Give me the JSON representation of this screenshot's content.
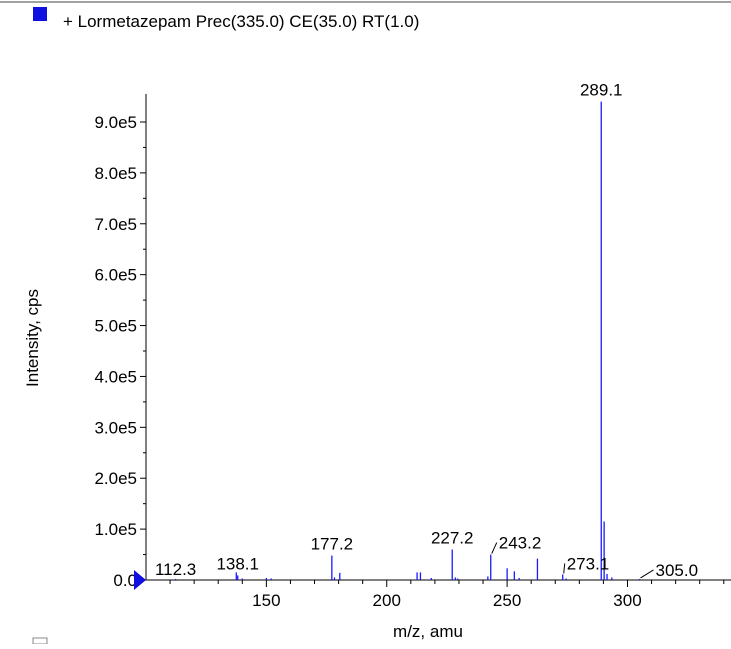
{
  "legend": {
    "label": "+ Lormetazepam Prec(335.0) CE(35.0) RT(1.0)",
    "color": "#1010e0"
  },
  "chart_data": {
    "type": "bar",
    "title": "+ Lormetazepam Prec(335.0) CE(35.0) RT(1.0)",
    "xlabel": "m/z, amu",
    "ylabel": "Intensity, cps",
    "xlim": [
      100,
      343
    ],
    "ylim": [
      0,
      955000
    ],
    "x_ticks": [
      150,
      200,
      250,
      300
    ],
    "x_tick_labels": [
      "150",
      "200",
      "250",
      "300"
    ],
    "y_ticks": [
      0,
      100000,
      200000,
      300000,
      400000,
      500000,
      600000,
      700000,
      800000,
      900000
    ],
    "y_tick_labels": [
      "0.0",
      "1.0e5",
      "2.0e5",
      "3.0e5",
      "4.0e5",
      "5.0e5",
      "6.0e5",
      "7.0e5",
      "8.0e5",
      "9.0e5"
    ],
    "series_color": "#1a1aff",
    "series": [
      {
        "peaks": [
          {
            "x": 112.3,
            "y": 2000
          },
          {
            "x": 137.5,
            "y": 15000
          },
          {
            "x": 138.1,
            "y": 9000
          },
          {
            "x": 140.0,
            "y": 3000
          },
          {
            "x": 150.0,
            "y": 4000
          },
          {
            "x": 152.0,
            "y": 3000
          },
          {
            "x": 177.2,
            "y": 48000
          },
          {
            "x": 178.3,
            "y": 5000
          },
          {
            "x": 180.5,
            "y": 14000
          },
          {
            "x": 212.6,
            "y": 15000
          },
          {
            "x": 214.0,
            "y": 15000
          },
          {
            "x": 218.5,
            "y": 4000
          },
          {
            "x": 227.2,
            "y": 60000
          },
          {
            "x": 228.5,
            "y": 5000
          },
          {
            "x": 229.5,
            "y": 3000
          },
          {
            "x": 242.0,
            "y": 7000
          },
          {
            "x": 243.2,
            "y": 50000
          },
          {
            "x": 250.0,
            "y": 23000
          },
          {
            "x": 253.0,
            "y": 17000
          },
          {
            "x": 255.0,
            "y": 4000
          },
          {
            "x": 262.6,
            "y": 42000
          },
          {
            "x": 273.1,
            "y": 11000
          },
          {
            "x": 274.5,
            "y": 3000
          },
          {
            "x": 289.1,
            "y": 940000
          },
          {
            "x": 290.3,
            "y": 115000
          },
          {
            "x": 291.5,
            "y": 12000
          },
          {
            "x": 293.5,
            "y": 5000
          },
          {
            "x": 305.0,
            "y": 2000
          }
        ]
      }
    ],
    "peak_labels": [
      {
        "x": 112.3,
        "y": 2000,
        "text": "112.3"
      },
      {
        "x": 138.1,
        "y": 9000,
        "text": "138.1"
      },
      {
        "x": 177.2,
        "y": 48000,
        "text": "177.2"
      },
      {
        "x": 227.2,
        "y": 60000,
        "text": "227.2"
      },
      {
        "x": 243.2,
        "y": 50000,
        "text": "243.2"
      },
      {
        "x": 273.1,
        "y": 11000,
        "text": "273.1"
      },
      {
        "x": 289.1,
        "y": 940000,
        "text": "289.1"
      },
      {
        "x": 305.0,
        "y": 2000,
        "text": "305.0"
      }
    ],
    "grid": false,
    "legend_position": "top-left"
  }
}
